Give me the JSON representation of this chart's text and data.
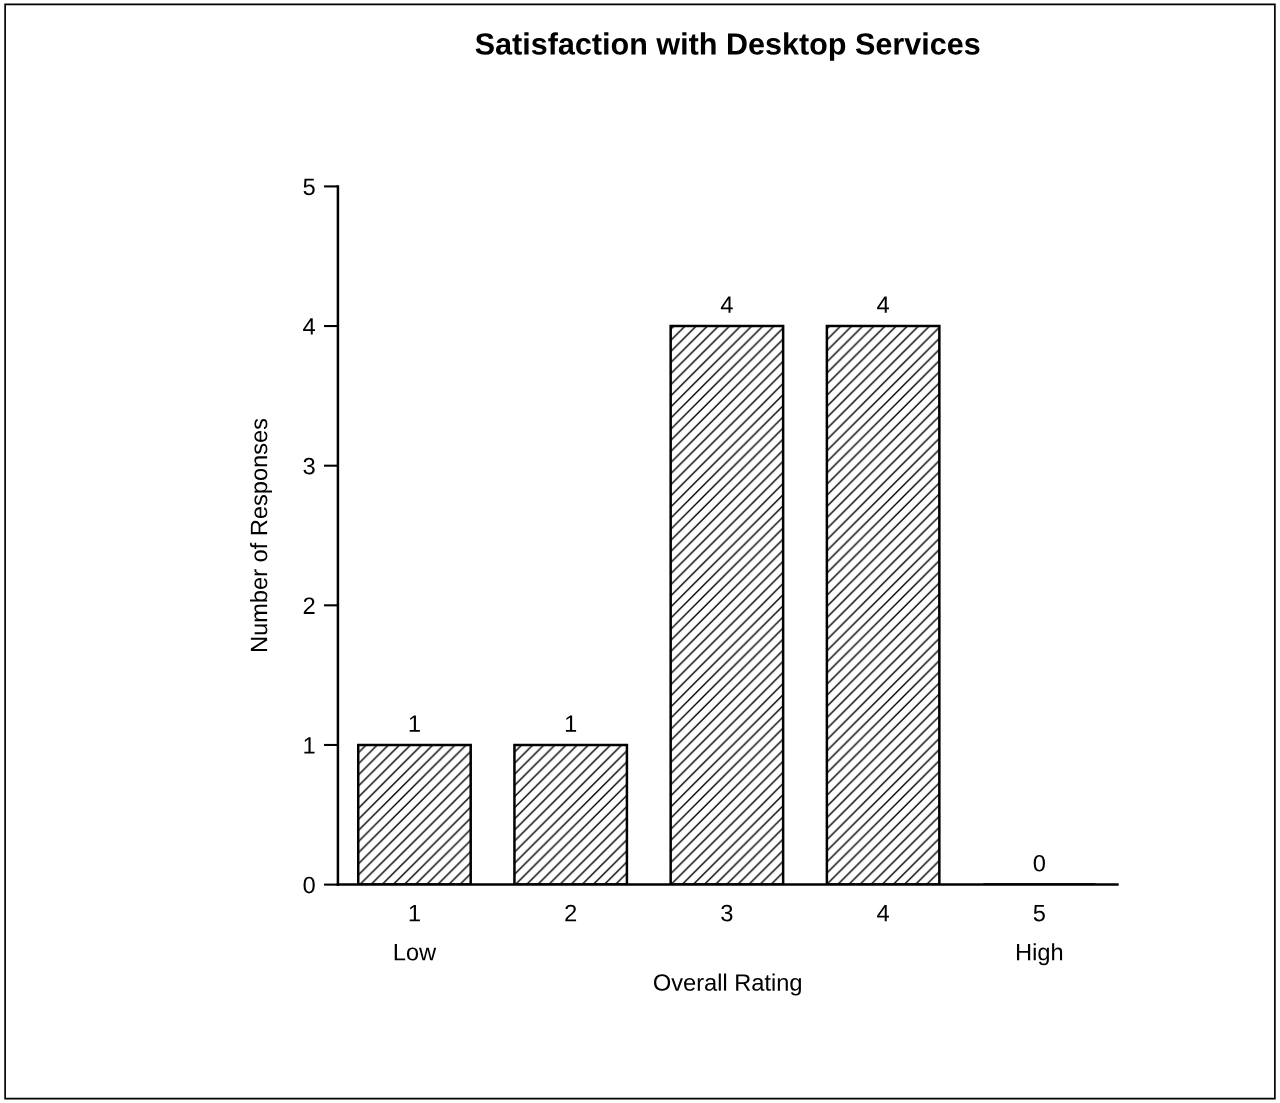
{
  "chart_data": {
    "type": "bar",
    "title": "Satisfaction with Desktop Services",
    "xlabel": "Overall Rating",
    "ylabel": "Number of Responses",
    "categories": [
      "1\nLow",
      "2",
      "3",
      "4",
      "5\nHigh"
    ],
    "values": [
      1,
      1,
      4,
      4,
      0
    ],
    "color": "#000000",
    "ylim": [
      0,
      5
    ],
    "yticks": [
      0,
      1,
      2,
      3,
      4,
      5
    ],
    "data_labels": true,
    "grid": false,
    "legend": false
  }
}
